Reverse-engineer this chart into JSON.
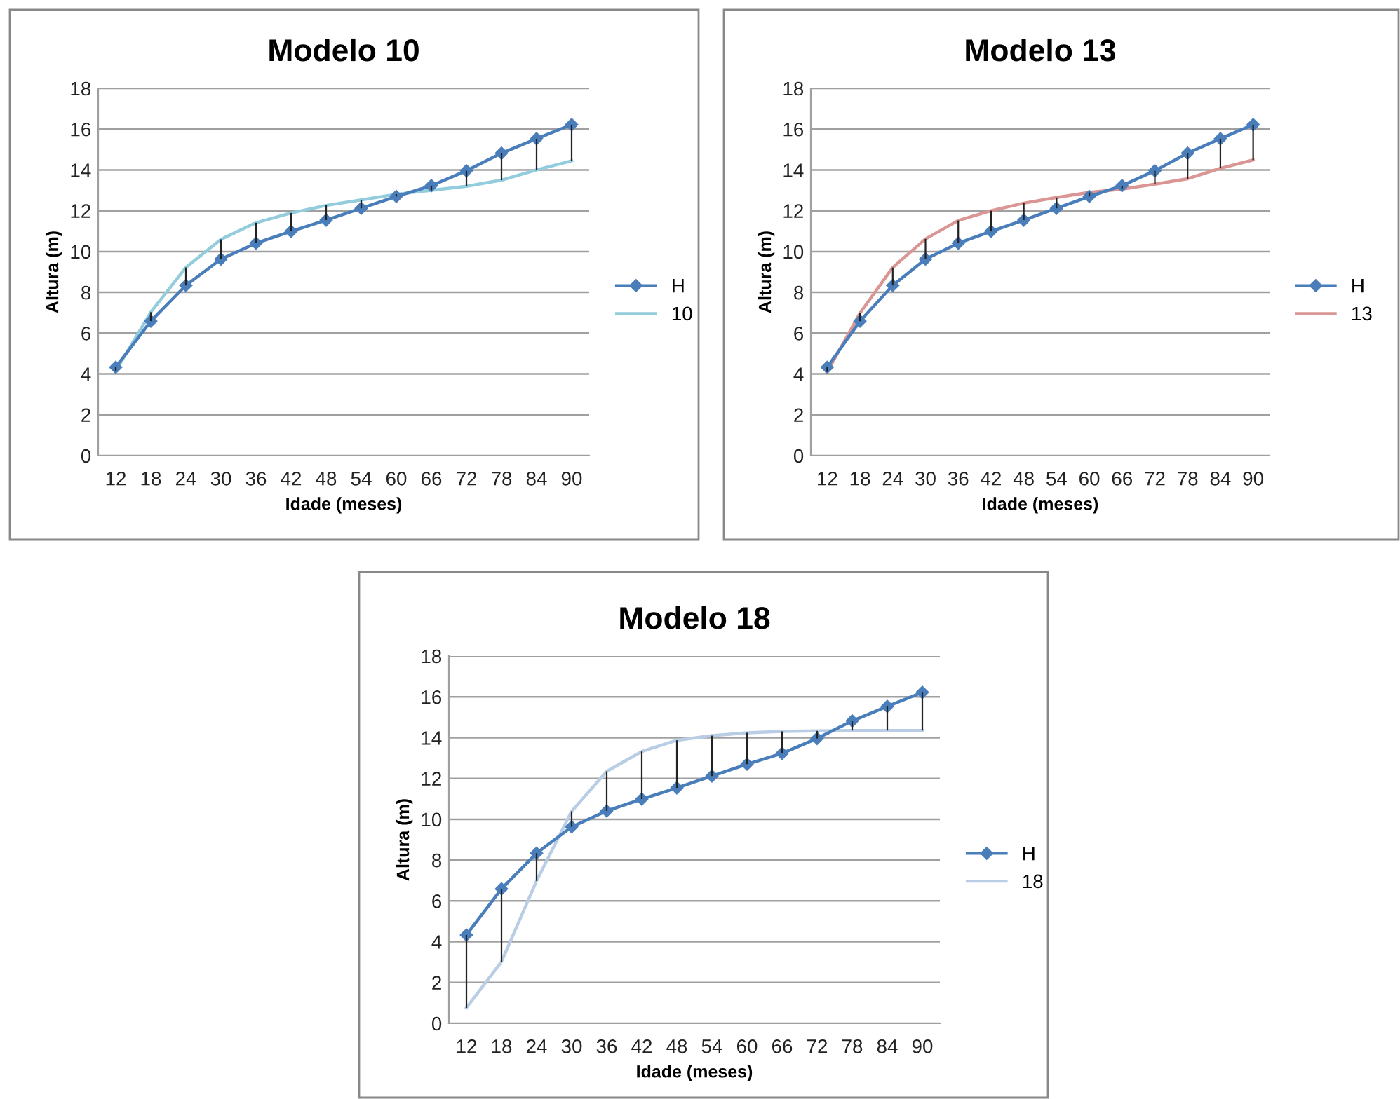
{
  "chart_data": [
    {
      "type": "line",
      "title": "Modelo 10",
      "xlabel": "Idade (meses)",
      "ylabel": "Altura (m)",
      "categories": [
        "12",
        "18",
        "24",
        "30",
        "36",
        "42",
        "48",
        "54",
        "60",
        "66",
        "72",
        "78",
        "84",
        "90"
      ],
      "ylim": [
        0,
        18
      ],
      "yticks": [
        0,
        2,
        4,
        6,
        8,
        10,
        12,
        14,
        16,
        18
      ],
      "grid": "y",
      "legend": "right",
      "series": [
        {
          "name": "H",
          "color": "#4a7ebb",
          "marker": "diamond",
          "values": [
            4.33,
            6.59,
            8.34,
            9.63,
            10.41,
            10.99,
            11.54,
            12.12,
            12.7,
            13.23,
            13.96,
            14.82,
            15.53,
            16.22
          ],
          "errors": [
            [
              4.15,
              4.33
            ],
            [
              6.59,
              7.03
            ],
            [
              8.34,
              9.22
            ],
            [
              9.63,
              10.6
            ],
            [
              10.41,
              11.41
            ],
            [
              10.99,
              11.89
            ],
            [
              11.54,
              12.26
            ],
            [
              12.12,
              12.53
            ],
            [
              12.7,
              12.81
            ],
            [
              13.0,
              13.23
            ],
            [
              13.2,
              13.96
            ],
            [
              13.5,
              14.82
            ],
            [
              14.0,
              15.53
            ],
            [
              14.45,
              16.22
            ]
          ]
        },
        {
          "name": "10",
          "color": "#93cddd",
          "marker": "none",
          "values": [
            4.15,
            7.03,
            9.22,
            10.6,
            11.41,
            11.89,
            12.26,
            12.53,
            12.81,
            13.0,
            13.2,
            13.5,
            14.0,
            14.45
          ]
        }
      ]
    },
    {
      "type": "line",
      "title": "Modelo 13",
      "xlabel": "Idade (meses)",
      "ylabel": "Altura (m)",
      "categories": [
        "12",
        "18",
        "24",
        "30",
        "36",
        "42",
        "48",
        "54",
        "60",
        "66",
        "72",
        "78",
        "84",
        "90"
      ],
      "ylim": [
        0,
        18
      ],
      "yticks": [
        0,
        2,
        4,
        6,
        8,
        10,
        12,
        14,
        16,
        18
      ],
      "grid": "y",
      "legend": "right",
      "series": [
        {
          "name": "H",
          "color": "#4a7ebb",
          "marker": "diamond",
          "values": [
            4.33,
            6.59,
            8.34,
            9.63,
            10.41,
            10.99,
            11.54,
            12.12,
            12.7,
            13.23,
            13.96,
            14.82,
            15.53,
            16.22
          ],
          "errors": [
            [
              4.1,
              4.33
            ],
            [
              6.59,
              6.98
            ],
            [
              8.34,
              9.22
            ],
            [
              9.63,
              10.62
            ],
            [
              10.41,
              11.52
            ],
            [
              10.99,
              12.0
            ],
            [
              11.54,
              12.37
            ],
            [
              12.12,
              12.65
            ],
            [
              12.7,
              12.9
            ],
            [
              13.06,
              13.23
            ],
            [
              13.3,
              13.96
            ],
            [
              13.57,
              14.82
            ],
            [
              14.08,
              15.53
            ],
            [
              14.49,
              16.22
            ]
          ]
        },
        {
          "name": "13",
          "color": "#d99694",
          "marker": "none",
          "values": [
            4.1,
            6.98,
            9.22,
            10.62,
            11.52,
            12.0,
            12.37,
            12.65,
            12.9,
            13.06,
            13.3,
            13.57,
            14.08,
            14.49
          ]
        }
      ]
    },
    {
      "type": "line",
      "title": "Modelo 18",
      "xlabel": "Idade (meses)",
      "ylabel": "Altura (m)",
      "categories": [
        "12",
        "18",
        "24",
        "30",
        "36",
        "42",
        "48",
        "54",
        "60",
        "66",
        "72",
        "78",
        "84",
        "90"
      ],
      "ylim": [
        0,
        18
      ],
      "yticks": [
        0,
        2,
        4,
        6,
        8,
        10,
        12,
        14,
        16,
        18
      ],
      "grid": "y",
      "legend": "right",
      "series": [
        {
          "name": "H",
          "color": "#4a7ebb",
          "marker": "diamond",
          "values": [
            4.33,
            6.59,
            8.34,
            9.63,
            10.41,
            10.99,
            11.54,
            12.12,
            12.7,
            13.23,
            13.96,
            14.82,
            15.53,
            16.22
          ],
          "errors": [
            [
              0.76,
              4.33
            ],
            [
              3.02,
              6.59
            ],
            [
              6.98,
              8.34
            ],
            [
              9.63,
              10.39
            ],
            [
              10.41,
              12.35
            ],
            [
              10.99,
              13.32
            ],
            [
              11.54,
              13.87
            ],
            [
              12.12,
              14.1
            ],
            [
              12.7,
              14.24
            ],
            [
              13.23,
              14.31
            ],
            [
              13.96,
              14.33
            ],
            [
              14.35,
              14.82
            ],
            [
              14.35,
              15.53
            ],
            [
              14.35,
              16.22
            ]
          ]
        },
        {
          "name": "18",
          "color": "#b9cde5",
          "marker": "none",
          "values": [
            0.76,
            3.02,
            6.98,
            10.39,
            12.35,
            13.32,
            13.87,
            14.1,
            14.24,
            14.31,
            14.33,
            14.35,
            14.35,
            14.35
          ]
        }
      ]
    }
  ]
}
